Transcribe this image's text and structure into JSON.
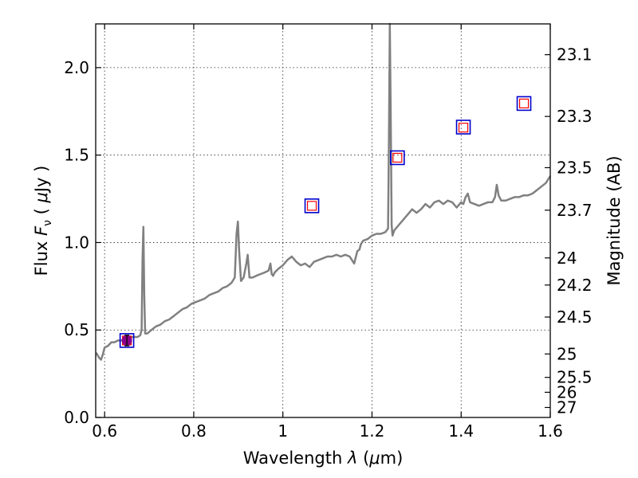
{
  "chart_data": {
    "type": "line",
    "xlabel": "Wavelength  λ (μm)",
    "ylabel": "Flux  F_ν  ( μJy )",
    "ylabel_parts": {
      "prefix": "Flux  ",
      "symbol": "F",
      "subscript": "ν",
      "units_open": "  ( ",
      "units_mu": "μ",
      "units_rest": "Jy )"
    },
    "xlabel_parts": {
      "prefix": "Wavelength  ",
      "symbol": "λ",
      "units_open": " (",
      "units_mu": "μ",
      "units_rest": "m)"
    },
    "y2label": "Magnitude (AB)",
    "xlim": [
      0.58,
      1.6
    ],
    "ylim": [
      0.0,
      2.25
    ],
    "grid": true,
    "x_ticks": [
      0.6,
      0.8,
      1.0,
      1.2,
      1.4,
      1.6
    ],
    "x_tick_labels": [
      "0.6",
      "0.8",
      "1",
      "1.2",
      "1.4",
      "1.6"
    ],
    "y_ticks": [
      0.0,
      0.5,
      1.0,
      1.5,
      2.0
    ],
    "y_tick_labels": [
      "0.0",
      "0.5",
      "1.0",
      "1.5",
      "2.0"
    ],
    "y2_ticks": [
      {
        "flux": 2.074,
        "label": "23.1"
      },
      {
        "flux": 1.721,
        "label": "23.3"
      },
      {
        "flux": 1.428,
        "label": "23.5"
      },
      {
        "flux": 1.185,
        "label": "23.7"
      },
      {
        "flux": 0.912,
        "label": "24"
      },
      {
        "flux": 0.757,
        "label": "24.2"
      },
      {
        "flux": 0.574,
        "label": "24.5"
      },
      {
        "flux": 0.363,
        "label": "25"
      },
      {
        "flux": 0.229,
        "label": "25.5"
      },
      {
        "flux": 0.144,
        "label": "26"
      },
      {
        "flux": 0.057,
        "label": "27"
      }
    ],
    "spectrum": {
      "name": "model spectrum",
      "color": "#808080",
      "x": [
        0.581,
        0.588,
        0.592,
        0.596,
        0.6,
        0.608,
        0.615,
        0.622,
        0.63,
        0.638,
        0.645,
        0.652,
        0.66,
        0.667,
        0.674,
        0.68,
        0.683,
        0.685,
        0.687,
        0.689,
        0.691,
        0.696,
        0.705,
        0.715,
        0.725,
        0.735,
        0.745,
        0.755,
        0.765,
        0.775,
        0.785,
        0.795,
        0.805,
        0.815,
        0.825,
        0.835,
        0.845,
        0.855,
        0.865,
        0.875,
        0.885,
        0.892,
        0.896,
        0.899,
        0.902,
        0.906,
        0.912,
        0.918,
        0.921,
        0.925,
        0.932,
        0.94,
        0.95,
        0.96,
        0.968,
        0.972,
        0.975,
        0.978,
        0.982,
        0.99,
        1.0,
        1.01,
        1.02,
        1.03,
        1.04,
        1.05,
        1.06,
        1.07,
        1.08,
        1.09,
        1.1,
        1.11,
        1.12,
        1.13,
        1.14,
        1.15,
        1.16,
        1.167,
        1.172,
        1.175,
        1.18,
        1.19,
        1.2,
        1.21,
        1.22,
        1.23,
        1.236,
        1.238,
        1.24,
        1.242,
        1.244,
        1.246,
        1.25,
        1.26,
        1.27,
        1.28,
        1.29,
        1.3,
        1.31,
        1.32,
        1.33,
        1.34,
        1.35,
        1.36,
        1.37,
        1.38,
        1.39,
        1.4,
        1.405,
        1.41,
        1.415,
        1.42,
        1.43,
        1.44,
        1.45,
        1.46,
        1.47,
        1.476,
        1.48,
        1.484,
        1.49,
        1.5,
        1.51,
        1.52,
        1.53,
        1.54,
        1.55,
        1.56,
        1.57,
        1.58,
        1.59,
        1.6
      ],
      "y": [
        0.37,
        0.34,
        0.33,
        0.36,
        0.4,
        0.41,
        0.43,
        0.43,
        0.44,
        0.44,
        0.45,
        0.45,
        0.46,
        0.46,
        0.46,
        0.47,
        0.5,
        0.9,
        1.09,
        0.7,
        0.48,
        0.48,
        0.5,
        0.52,
        0.53,
        0.55,
        0.56,
        0.58,
        0.6,
        0.62,
        0.63,
        0.65,
        0.66,
        0.67,
        0.68,
        0.7,
        0.71,
        0.72,
        0.74,
        0.75,
        0.77,
        0.8,
        1.05,
        1.12,
        0.95,
        0.78,
        0.8,
        0.88,
        0.93,
        0.8,
        0.8,
        0.81,
        0.82,
        0.83,
        0.84,
        0.88,
        0.82,
        0.81,
        0.83,
        0.85,
        0.87,
        0.9,
        0.92,
        0.89,
        0.87,
        0.88,
        0.86,
        0.89,
        0.9,
        0.91,
        0.92,
        0.92,
        0.93,
        0.92,
        0.93,
        0.92,
        0.88,
        0.95,
        0.96,
        0.99,
        1.01,
        1.02,
        1.04,
        1.05,
        1.05,
        1.06,
        1.08,
        1.6,
        2.25,
        1.75,
        1.1,
        1.04,
        1.07,
        1.1,
        1.13,
        1.16,
        1.19,
        1.17,
        1.19,
        1.22,
        1.2,
        1.23,
        1.24,
        1.22,
        1.24,
        1.23,
        1.2,
        1.23,
        1.22,
        1.26,
        1.28,
        1.23,
        1.22,
        1.21,
        1.22,
        1.23,
        1.23,
        1.26,
        1.33,
        1.27,
        1.24,
        1.24,
        1.25,
        1.26,
        1.26,
        1.27,
        1.27,
        1.28,
        1.3,
        1.32,
        1.34,
        1.38
      ]
    },
    "photometry_observed": {
      "name": "observed photometry",
      "marker": "square",
      "color": "#0000cc",
      "x": [
        0.65,
        1.065,
        1.257,
        1.405,
        1.541
      ],
      "y": [
        0.44,
        1.21,
        1.485,
        1.66,
        1.795
      ]
    },
    "photometry_model": {
      "name": "model photometry",
      "marker": "square",
      "color": "#ff0000",
      "x": [
        0.65,
        1.065,
        1.257,
        1.405,
        1.541
      ],
      "y": [
        0.44,
        1.21,
        1.485,
        1.657,
        1.795
      ]
    },
    "detection_point": {
      "name": "measured flux",
      "color": "#8b008b",
      "x": 0.65,
      "y": 0.44,
      "yerr": 0.03
    }
  }
}
